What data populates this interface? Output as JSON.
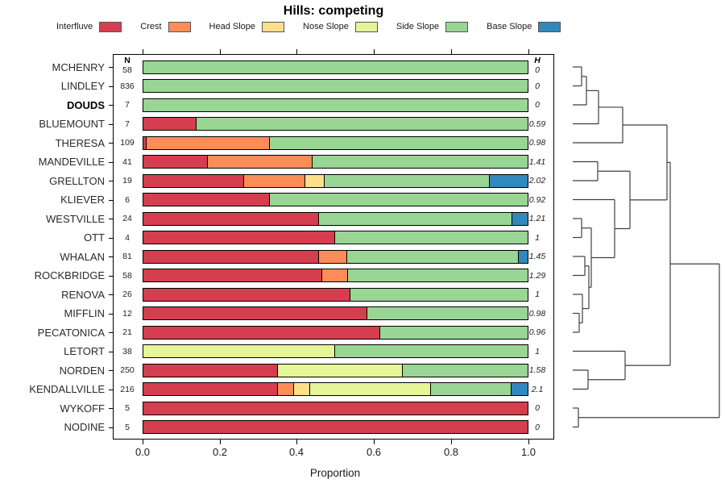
{
  "columns": {
    "n_header": "N",
    "h_header": "H"
  },
  "chart_data": {
    "type": "bar",
    "orientation": "horizontal",
    "stacked": true,
    "title": "Hills: competing",
    "xlabel": "Proportion",
    "xlim": [
      0,
      1
    ],
    "xticks": [
      0,
      0.2,
      0.4,
      0.6,
      0.8,
      1.0
    ],
    "xtick_labels": [
      "0.0",
      "0.2",
      "0.4",
      "0.6",
      "0.8",
      "1.0"
    ],
    "legend_position": "top",
    "grid": false,
    "categories": [
      "MCHENRY",
      "LINDLEY",
      "DOUDS",
      "BLUEMOUNT",
      "THERESA",
      "MANDEVILLE",
      "GRELLTON",
      "KLIEVER",
      "WESTVILLE",
      "OTT",
      "WHALAN",
      "ROCKBRIDGE",
      "RENOVA",
      "MIFFLIN",
      "PECATONICA",
      "LETORT",
      "NORDEN",
      "KENDALLVILLE",
      "WYKOFF",
      "NODINE"
    ],
    "emphasized_category": "DOUDS",
    "n_values": [
      58,
      836,
      7,
      7,
      109,
      41,
      19,
      6,
      24,
      4,
      81,
      58,
      26,
      12,
      21,
      38,
      250,
      216,
      5,
      5
    ],
    "h_values": [
      "0",
      "0",
      "0",
      "0.59",
      "0.98",
      "1.41",
      "2.02",
      "0.92",
      "1.21",
      "1",
      "1.45",
      "1.29",
      "1",
      "0.98",
      "0.96",
      "1",
      "1.58",
      "2.1",
      "0",
      "0"
    ],
    "series": [
      {
        "name": "Interfluve",
        "color": "#D53E4F",
        "values": [
          0,
          0,
          0,
          0.14,
          0.01,
          0.17,
          0.264,
          0.33,
          0.458,
          0.5,
          0.458,
          0.465,
          0.539,
          0.583,
          0.617,
          0,
          0.352,
          0.352,
          1,
          1
        ]
      },
      {
        "name": "Crest",
        "color": "#FC8D59",
        "values": [
          0,
          0,
          0,
          0,
          0.32,
          0.27,
          0.159,
          0,
          0,
          0,
          0.073,
          0.068,
          0,
          0,
          0,
          0,
          0,
          0.04,
          0,
          0
        ]
      },
      {
        "name": "Head Slope",
        "color": "#FEE08B",
        "values": [
          0,
          0,
          0,
          0,
          0,
          0,
          0.05,
          0,
          0,
          0,
          0,
          0,
          0,
          0,
          0,
          0,
          0,
          0.042,
          0,
          0
        ]
      },
      {
        "name": "Nose Slope",
        "color": "#E6F598",
        "values": [
          0,
          0,
          0,
          0,
          0,
          0,
          0,
          0,
          0,
          0,
          0,
          0,
          0,
          0,
          0,
          0.499,
          0.323,
          0.315,
          0,
          0
        ]
      },
      {
        "name": "Side Slope",
        "color": "#99D594",
        "values": [
          1,
          1,
          1,
          0.86,
          0.67,
          0.56,
          0.427,
          0.67,
          0.502,
          0.5,
          0.444,
          0.467,
          0.461,
          0.417,
          0.383,
          0.501,
          0.325,
          0.208,
          0,
          0
        ]
      },
      {
        "name": "Base Slope",
        "color": "#3288BD",
        "values": [
          0,
          0,
          0,
          0,
          0,
          0,
          0.1,
          0,
          0.04,
          0,
          0.025,
          0,
          0,
          0,
          0,
          0,
          0,
          0.043,
          0,
          0
        ]
      }
    ]
  },
  "dendrogram": {
    "leaf_x": 711,
    "root_x": 893,
    "merges": [
      [
        0,
        1,
        722
      ],
      [
        "m0",
        2,
        728
      ],
      [
        "m1",
        3,
        743
      ],
      [
        "m2",
        4,
        773
      ],
      [
        5,
        6,
        742
      ],
      [
        8,
        9,
        722
      ],
      [
        10,
        11,
        726
      ],
      [
        13,
        14,
        719
      ],
      [
        12,
        "m7",
        723
      ],
      [
        "m6",
        "m8",
        731
      ],
      [
        "m5",
        "m9",
        734
      ],
      [
        7,
        "m10",
        763
      ],
      [
        "m4",
        "m11",
        782
      ],
      [
        "m3",
        "m12",
        828
      ],
      [
        16,
        17,
        730
      ],
      [
        15,
        "m14",
        776
      ],
      [
        "m13",
        "m15",
        832
      ],
      [
        18,
        19,
        718
      ],
      [
        "m16",
        "m17",
        893
      ]
    ]
  }
}
